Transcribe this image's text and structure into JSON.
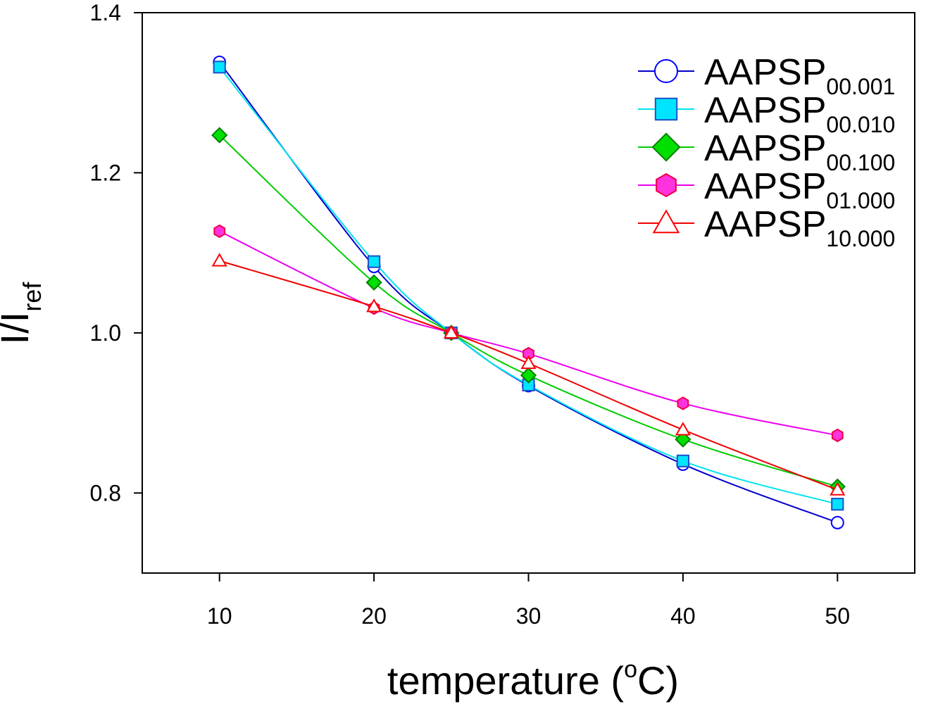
{
  "chart_data": {
    "type": "line",
    "title": "",
    "xlabel": "temperature",
    "xlabel_unit_open": " (",
    "xlabel_unit_sup": "o",
    "xlabel_unit_rest": "C)",
    "ylabel_main": "I/I",
    "ylabel_sub": "ref",
    "xlim": [
      5,
      55
    ],
    "ylim": [
      0.7,
      1.4
    ],
    "x_ticks": [
      10,
      20,
      30,
      40,
      50
    ],
    "x_tick_labels": [
      "10",
      "20",
      "30",
      "40",
      "50"
    ],
    "y_ticks": [
      0.8,
      1.0,
      1.2,
      1.4
    ],
    "y_tick_labels": [
      "0.8",
      "1.0",
      "1.2",
      "1.4"
    ],
    "grid": false,
    "legend_position": "top-right",
    "x": [
      10,
      20,
      25,
      30,
      40,
      50
    ],
    "series": [
      {
        "name": "AAPSP",
        "name_sub": "00.001",
        "values": [
          1.338,
          1.083,
          1.0,
          0.934,
          0.836,
          0.763
        ],
        "line_color": "#0000cc",
        "marker": "circle",
        "marker_fill": "#ffffff",
        "marker_stroke": "#0000ff"
      },
      {
        "name": "AAPSP",
        "name_sub": "00.010",
        "values": [
          1.332,
          1.089,
          1.0,
          0.935,
          0.84,
          0.786
        ],
        "line_color": "#00e5ee",
        "marker": "square",
        "marker_fill": "#00e5ff",
        "marker_stroke": "#1e50c8"
      },
      {
        "name": "AAPSP",
        "name_sub": "00.100",
        "values": [
          1.247,
          1.063,
          1.0,
          0.947,
          0.867,
          0.808
        ],
        "line_color": "#00cc00",
        "marker": "diamond",
        "marker_fill": "#00e000",
        "marker_stroke": "#008000"
      },
      {
        "name": "AAPSP",
        "name_sub": "01.000",
        "values": [
          1.127,
          1.031,
          1.0,
          0.974,
          0.912,
          0.872
        ],
        "line_color": "#ee00ee",
        "marker": "hexagon",
        "marker_fill": "#ff33dd",
        "marker_stroke": "#ee0044"
      },
      {
        "name": "AAPSP",
        "name_sub": "10.000",
        "values": [
          1.09,
          1.033,
          1.0,
          0.962,
          0.879,
          0.804
        ],
        "line_color": "#ee0000",
        "marker": "triangle",
        "marker_fill": "#ffffff",
        "marker_stroke": "#ff0000"
      }
    ]
  }
}
